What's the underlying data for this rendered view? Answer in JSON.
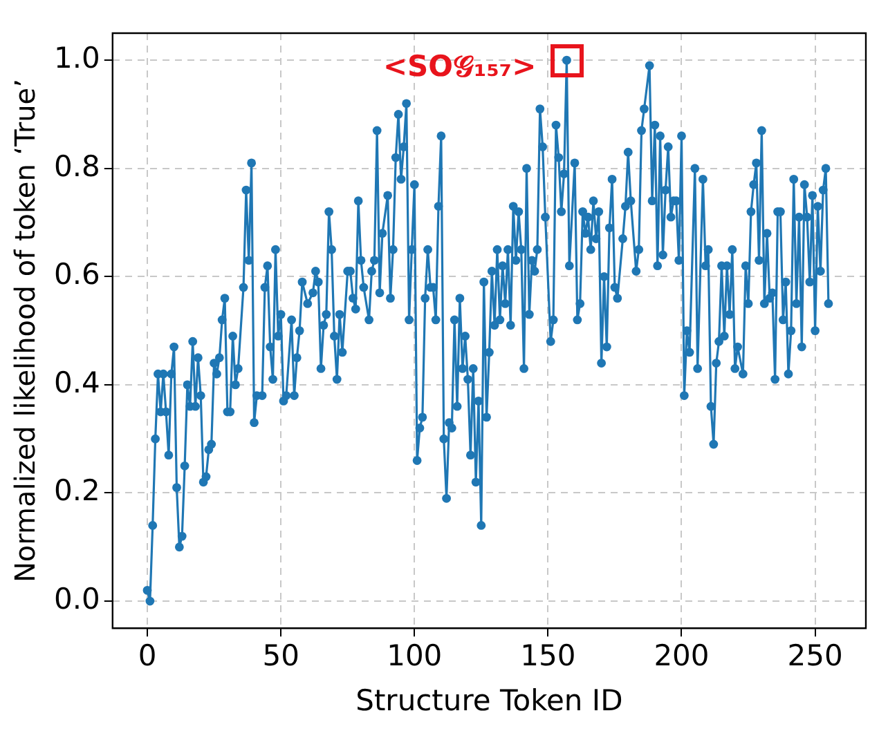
{
  "chart_data": {
    "type": "line",
    "xlabel": "Structure Token ID",
    "ylabel": "Normalized likelihood of token ‘True’",
    "xlim": [
      -13,
      269
    ],
    "xticks": [
      0,
      50,
      100,
      150,
      200,
      250
    ],
    "ylim": [
      -0.05,
      1.05
    ],
    "yticks": [
      {
        "value": 0,
        "label": "0.0"
      },
      0.2,
      0.4,
      0.6,
      0.8,
      {
        "value": 1,
        "label": "1.0"
      }
    ],
    "grid": true,
    "marker": "circle",
    "line_style": "solid",
    "annotations": [
      {
        "text": "<SO𝒢₁₅₇>",
        "x": 157,
        "y": 1.0
      }
    ],
    "series": [
      {
        "color": "#1f77b4",
        "x": [
          0,
          1,
          2,
          3,
          4,
          5,
          6,
          7,
          8,
          9,
          10,
          11,
          12,
          13,
          14,
          15,
          16,
          17,
          18,
          19,
          20,
          21,
          22,
          23,
          24,
          25,
          26,
          27,
          28,
          29,
          30,
          31,
          32,
          33,
          34,
          36,
          37,
          38,
          39,
          40,
          41,
          43,
          44,
          45,
          46,
          47,
          48,
          49,
          50,
          51,
          52,
          54,
          55,
          56,
          57,
          58,
          60,
          62,
          63,
          64,
          65,
          66,
          67,
          68,
          69,
          70,
          71,
          72,
          73,
          75,
          76,
          77,
          78,
          79,
          80,
          81,
          83,
          84,
          85,
          86,
          87,
          88,
          90,
          91,
          92,
          93,
          94,
          95,
          96,
          97,
          98,
          99,
          100,
          101,
          102,
          103,
          104,
          105,
          106,
          107,
          108,
          109,
          110,
          111,
          112,
          113,
          114,
          115,
          116,
          117,
          118,
          119,
          120,
          121,
          122,
          123,
          124,
          125,
          126,
          127,
          128,
          129,
          130,
          131,
          132,
          133,
          134,
          135,
          136,
          137,
          138,
          139,
          140,
          141,
          142,
          143,
          144,
          145,
          146,
          147,
          148,
          149,
          151,
          152,
          153,
          154,
          155,
          156,
          157,
          158,
          160,
          161,
          162,
          163,
          164,
          165,
          166,
          167,
          168,
          169,
          170,
          171,
          172,
          173,
          174,
          175,
          176,
          178,
          179,
          180,
          181,
          183,
          184,
          185,
          186,
          188,
          189,
          190,
          191,
          192,
          193,
          194,
          195,
          196,
          197,
          198,
          199,
          200,
          201,
          202,
          203,
          205,
          206,
          208,
          209,
          210,
          211,
          212,
          213,
          214,
          215,
          216,
          217,
          218,
          219,
          220,
          221,
          223,
          224,
          225,
          226,
          227,
          228,
          229,
          230,
          231,
          232,
          233,
          234,
          235,
          236,
          237,
          238,
          239,
          240,
          241,
          242,
          243,
          244,
          245,
          246,
          247,
          248,
          249,
          250,
          251,
          252,
          253,
          254,
          255
        ],
        "values": [
          0.02,
          0,
          0.14,
          0.3,
          0.42,
          0.35,
          0.42,
          0.35,
          0.27,
          0.42,
          0.47,
          0.21,
          0.1,
          0.12,
          0.25,
          0.4,
          0.36,
          0.48,
          0.36,
          0.45,
          0.38,
          0.22,
          0.23,
          0.28,
          0.29,
          0.44,
          0.42,
          0.45,
          0.52,
          0.56,
          0.35,
          0.35,
          0.49,
          0.4,
          0.43,
          0.58,
          0.76,
          0.63,
          0.81,
          0.33,
          0.38,
          0.38,
          0.58,
          0.62,
          0.47,
          0.41,
          0.65,
          0.49,
          0.53,
          0.37,
          0.38,
          0.52,
          0.38,
          0.45,
          0.5,
          0.59,
          0.55,
          0.57,
          0.61,
          0.59,
          0.43,
          0.51,
          0.53,
          0.72,
          0.65,
          0.49,
          0.41,
          0.53,
          0.46,
          0.61,
          0.61,
          0.56,
          0.54,
          0.74,
          0.63,
          0.58,
          0.52,
          0.61,
          0.63,
          0.87,
          0.57,
          0.68,
          0.75,
          0.56,
          0.65,
          0.82,
          0.9,
          0.78,
          0.84,
          0.92,
          0.52,
          0.65,
          0.77,
          0.26,
          0.32,
          0.34,
          0.56,
          0.65,
          0.58,
          0.58,
          0.52,
          0.73,
          0.86,
          0.3,
          0.19,
          0.33,
          0.32,
          0.52,
          0.36,
          0.56,
          0.43,
          0.49,
          0.41,
          0.27,
          0.43,
          0.22,
          0.37,
          0.14,
          0.59,
          0.34,
          0.46,
          0.61,
          0.51,
          0.65,
          0.52,
          0.62,
          0.55,
          0.65,
          0.51,
          0.73,
          0.63,
          0.72,
          0.65,
          0.43,
          0.8,
          0.53,
          0.63,
          0.61,
          0.65,
          0.91,
          0.84,
          0.71,
          0.48,
          0.52,
          0.88,
          0.82,
          0.72,
          0.79,
          1.0,
          0.62,
          0.81,
          0.52,
          0.55,
          0.72,
          0.68,
          0.71,
          0.65,
          0.74,
          0.67,
          0.72,
          0.44,
          0.6,
          0.47,
          0.69,
          0.78,
          0.58,
          0.56,
          0.67,
          0.73,
          0.83,
          0.74,
          0.61,
          0.65,
          0.87,
          0.91,
          0.99,
          0.74,
          0.88,
          0.62,
          0.86,
          0.64,
          0.76,
          0.84,
          0.71,
          0.74,
          0.74,
          0.63,
          0.86,
          0.38,
          0.5,
          0.46,
          0.8,
          0.43,
          0.78,
          0.62,
          0.65,
          0.36,
          0.29,
          0.44,
          0.48,
          0.62,
          0.49,
          0.62,
          0.53,
          0.65,
          0.43,
          0.47,
          0.42,
          0.62,
          0.55,
          0.72,
          0.77,
          0.81,
          0.63,
          0.87,
          0.55,
          0.68,
          0.56,
          0.57,
          0.41,
          0.72,
          0.72,
          0.52,
          0.59,
          0.42,
          0.5,
          0.78,
          0.55,
          0.71,
          0.47,
          0.77,
          0.71,
          0.59,
          0.75,
          0.5,
          0.73,
          0.61,
          0.76,
          0.8,
          0.55
        ]
      }
    ]
  }
}
